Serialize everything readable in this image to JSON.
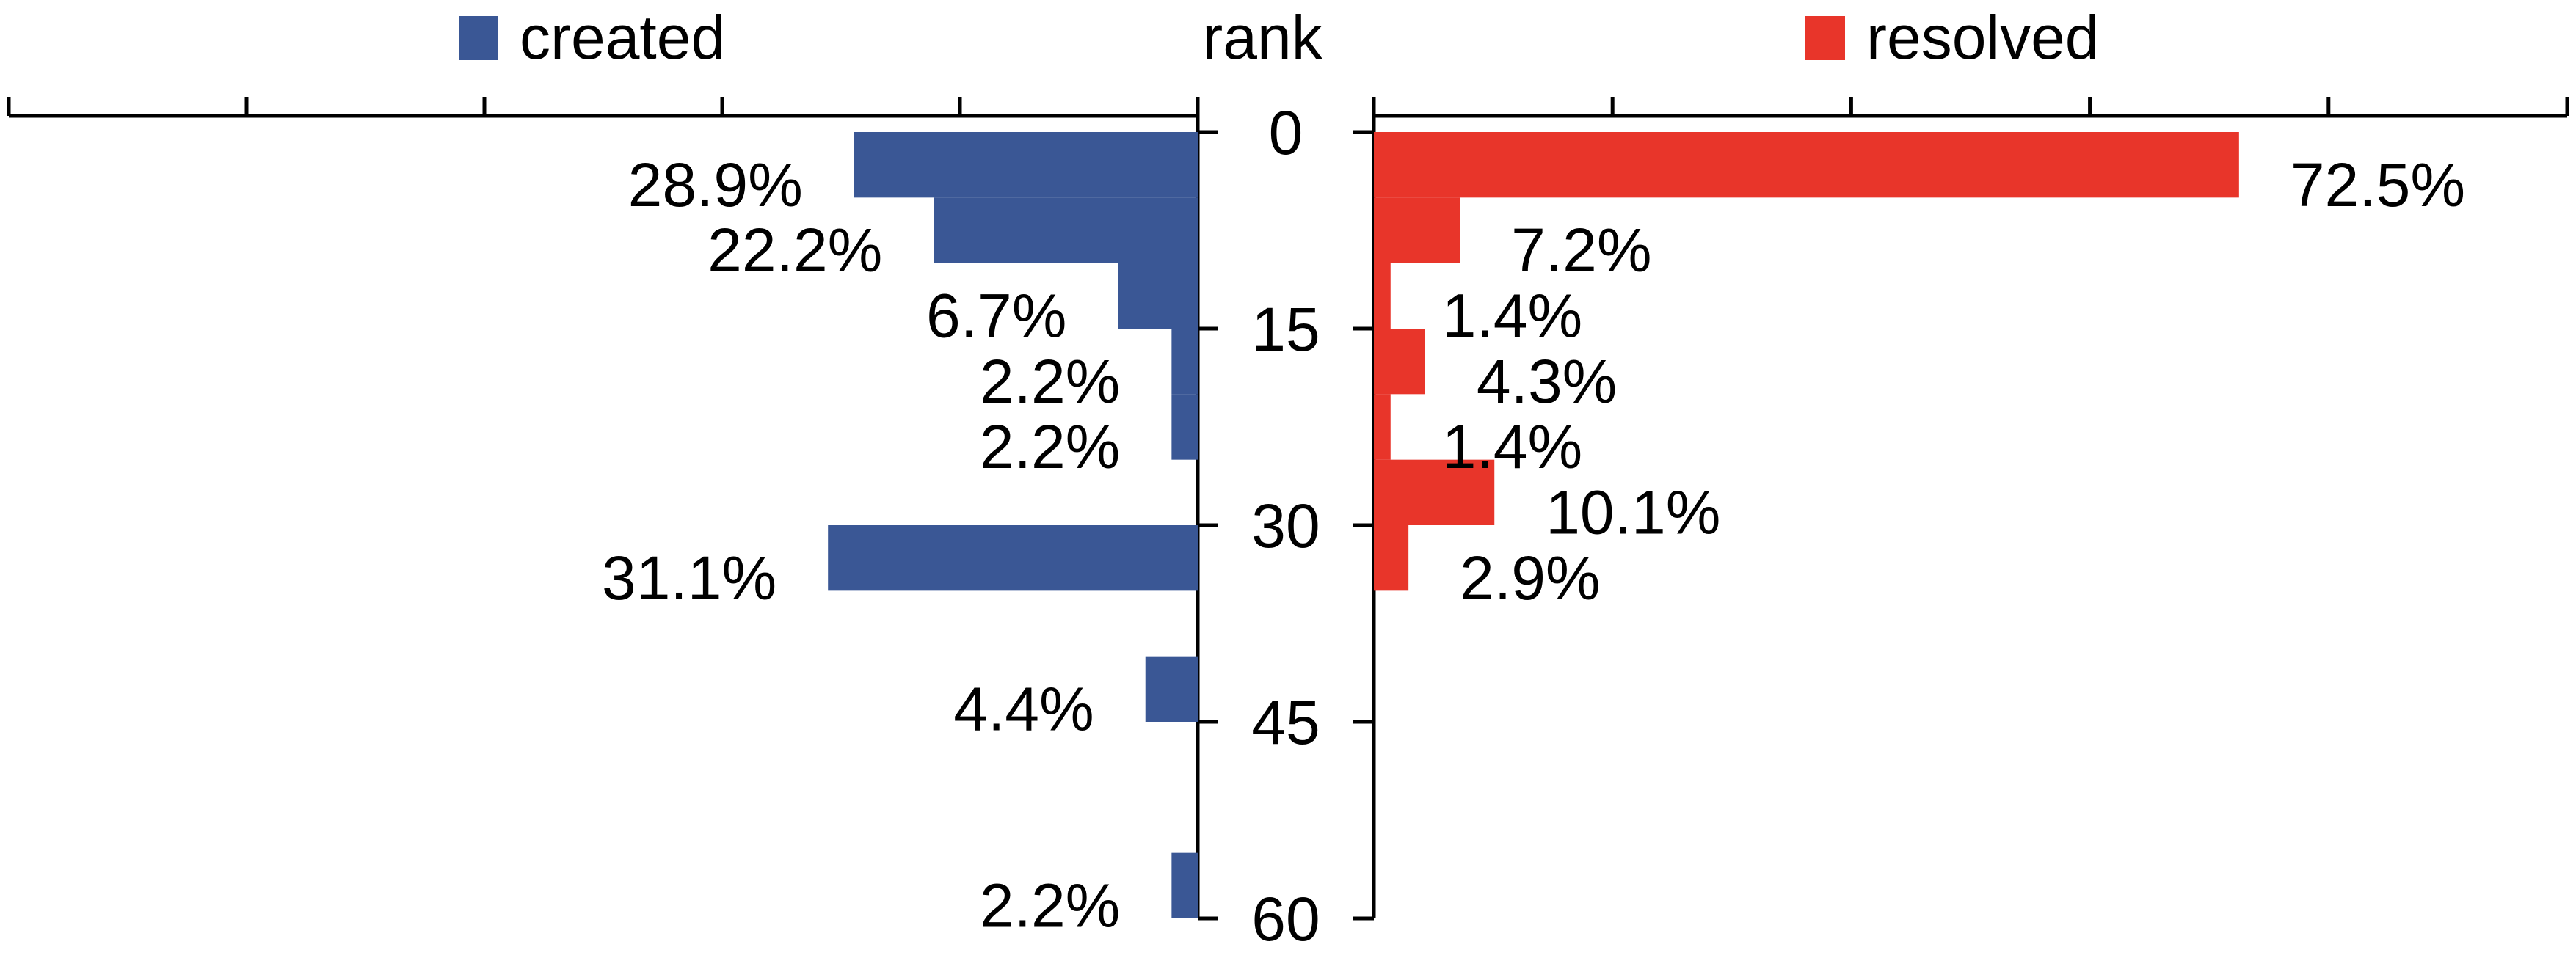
{
  "chart_data": {
    "type": "bar",
    "orientation": "horizontal-butterfly",
    "center_label": "rank",
    "rank_ticks": [
      "0",
      "15",
      "30",
      "45",
      "60"
    ],
    "rank_range": [
      0,
      60
    ],
    "bin_size": 5,
    "value_range": [
      0,
      100
    ],
    "value_tick_step": 20,
    "grid": false,
    "legend_placement": "top",
    "series": [
      {
        "name": "created",
        "side": "left",
        "color": "#3A5795",
        "bars": [
          {
            "rank_start": 0,
            "value": 28.9,
            "label": "28.9%"
          },
          {
            "rank_start": 5,
            "value": 22.2,
            "label": "22.2%"
          },
          {
            "rank_start": 10,
            "value": 6.7,
            "label": "6.7%"
          },
          {
            "rank_start": 15,
            "value": 2.2,
            "label": "2.2%"
          },
          {
            "rank_start": 20,
            "value": 2.2,
            "label": "2.2%"
          },
          {
            "rank_start": 30,
            "value": 31.1,
            "label": "31.1%"
          },
          {
            "rank_start": 40,
            "value": 4.4,
            "label": "4.4%"
          },
          {
            "rank_start": 55,
            "value": 2.2,
            "label": "2.2%"
          }
        ]
      },
      {
        "name": "resolved",
        "side": "right",
        "color": "#E8352A",
        "bars": [
          {
            "rank_start": 0,
            "value": 72.5,
            "label": "72.5%"
          },
          {
            "rank_start": 5,
            "value": 7.2,
            "label": "7.2%"
          },
          {
            "rank_start": 10,
            "value": 1.4,
            "label": "1.4%"
          },
          {
            "rank_start": 15,
            "value": 4.3,
            "label": "4.3%"
          },
          {
            "rank_start": 20,
            "value": 1.4,
            "label": "1.4%"
          },
          {
            "rank_start": 25,
            "value": 10.1,
            "label": "10.1%"
          },
          {
            "rank_start": 30,
            "value": 2.9,
            "label": "2.9%"
          }
        ]
      }
    ]
  }
}
